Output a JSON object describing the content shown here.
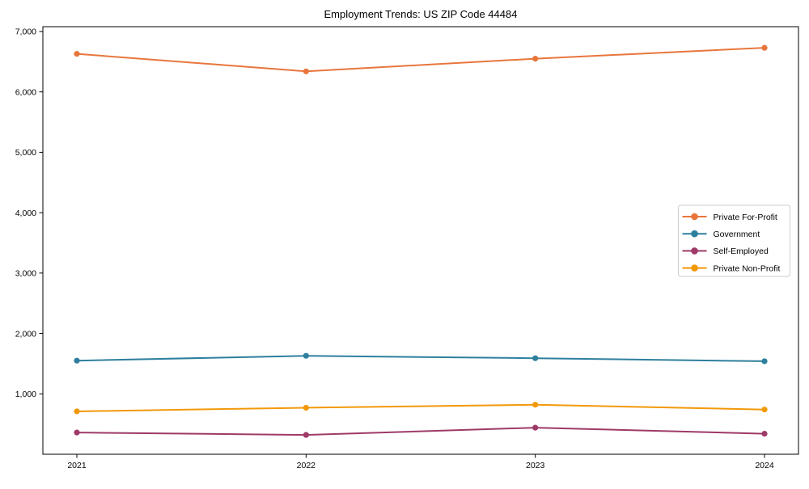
{
  "chart_data": {
    "type": "line",
    "title": "Employment Trends: US ZIP Code 44484",
    "x_labels": [
      "2021",
      "2022",
      "2023",
      "2024"
    ],
    "series": [
      {
        "name": "Private For-Profit",
        "color": "#e8763c",
        "values": [
          6630,
          6340,
          6550,
          6730
        ]
      },
      {
        "name": "Government",
        "color": "#2e7f9e",
        "values": [
          1550,
          1630,
          1590,
          1540
        ]
      },
      {
        "name": "Self-Employed",
        "color": "#9e3a68",
        "values": [
          360,
          320,
          440,
          340
        ]
      },
      {
        "name": "Private Non-Profit",
        "color": "#f2990a",
        "values": [
          710,
          770,
          820,
          740
        ]
      }
    ],
    "ylim": [
      0,
      7080
    ],
    "yticks": [
      1000,
      2000,
      3000,
      4000,
      5000,
      6000,
      7000
    ],
    "grid": false,
    "legend_position": "center-right",
    "legend_border_color": "#cccccc",
    "background_color": "#ffffff",
    "axis_color": "#000000",
    "marker": "circle",
    "line_width": 2
  }
}
